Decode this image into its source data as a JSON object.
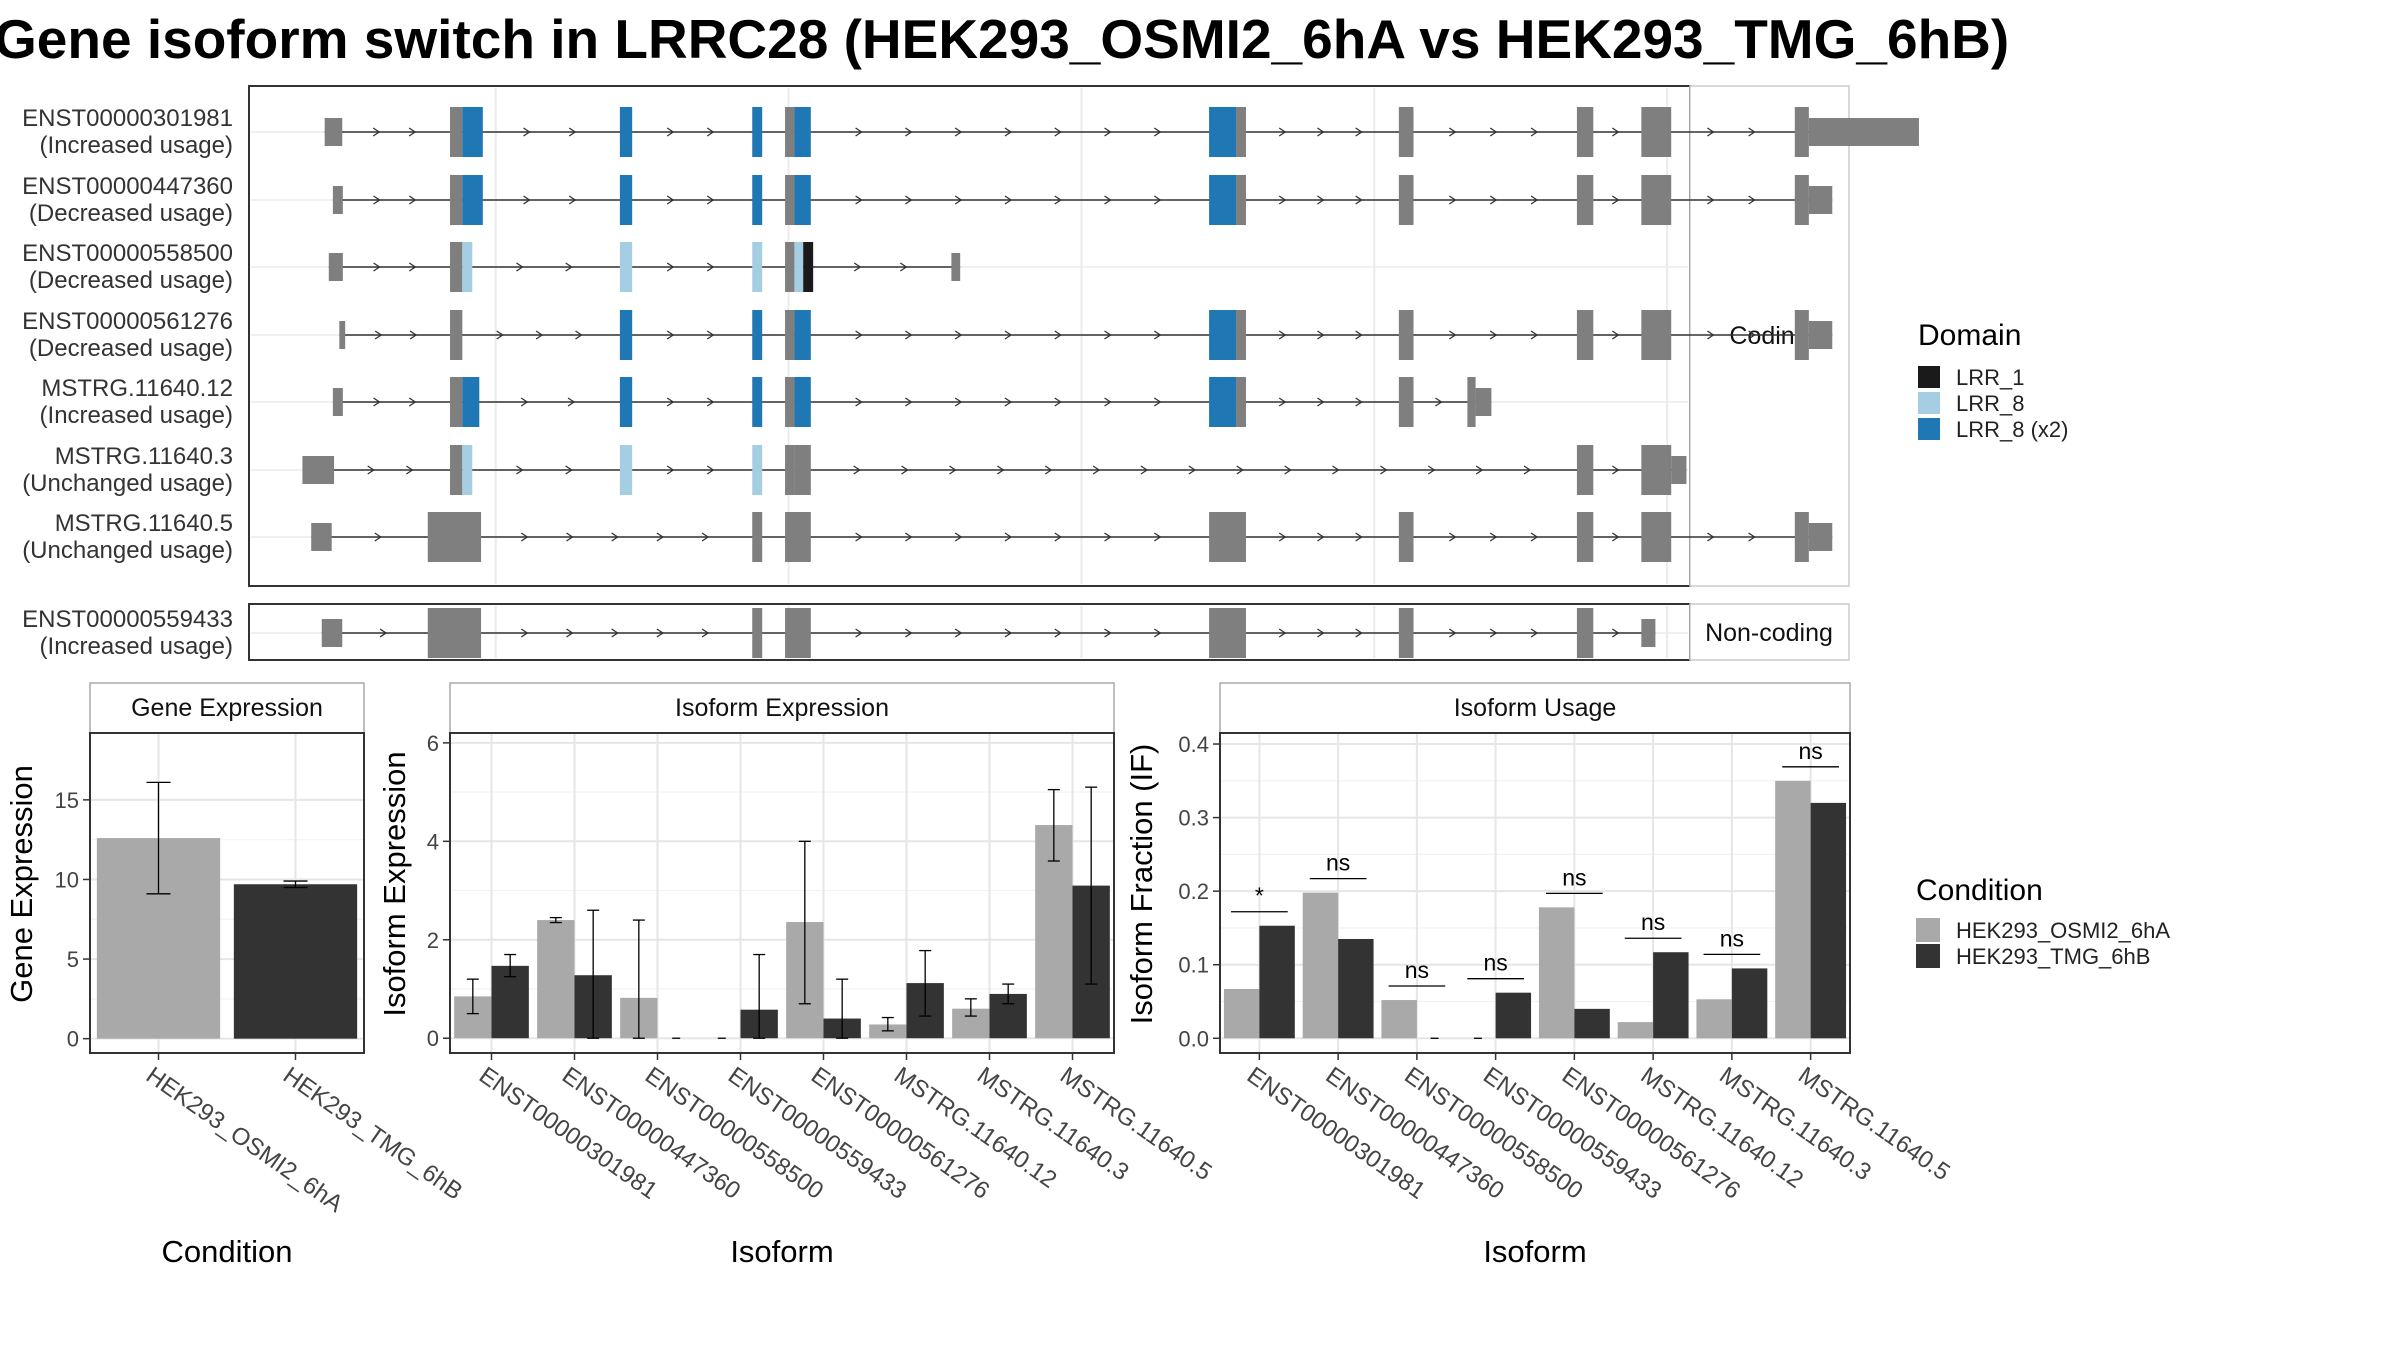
{
  "title": "Gene isoform switch in LRRC28 (HEK293_OSMI2_6hA vs HEK293_TMG_6hB)",
  "structure": {
    "coding_label": "Coding",
    "noncoding_label": "Non-coding",
    "transcripts": [
      {
        "id": "ENST00000301981",
        "usage": "(Increased usage)",
        "group": "coding"
      },
      {
        "id": "ENST00000447360",
        "usage": "(Decreased usage)",
        "group": "coding"
      },
      {
        "id": "ENST00000558500",
        "usage": "(Decreased usage)",
        "group": "coding"
      },
      {
        "id": "ENST00000561276",
        "usage": "(Decreased usage)",
        "group": "coding"
      },
      {
        "id": "MSTRG.11640.12",
        "usage": "(Increased usage)",
        "group": "coding"
      },
      {
        "id": "MSTRG.11640.3",
        "usage": "(Unchanged usage)",
        "group": "coding"
      },
      {
        "id": "MSTRG.11640.5",
        "usage": "(Unchanged usage)",
        "group": "coding"
      },
      {
        "id": "ENST00000559433",
        "usage": "(Increased usage)",
        "group": "noncoding"
      }
    ],
    "exon_sets": {
      "ENST00000301981": [
        [
          0.8,
          3.8,
          "n"
        ],
        [
          22.2,
          24.3,
          "n"
        ],
        [
          24.3,
          27.8,
          "d"
        ],
        [
          51.2,
          53.3,
          "d"
        ],
        [
          73.8,
          75.5,
          "d"
        ],
        [
          79.4,
          81.0,
          "n"
        ],
        [
          81.0,
          83.8,
          "d"
        ],
        [
          151.8,
          156.4,
          "d"
        ],
        [
          156.4,
          158.1,
          "n"
        ],
        [
          184.2,
          186.7,
          "n"
        ],
        [
          214.6,
          217.4,
          "n"
        ],
        [
          225.6,
          230.7,
          "n"
        ],
        [
          251.8,
          254.2,
          "n"
        ],
        [
          254.2,
          273.0,
          "n"
        ]
      ],
      "ENST00000447360": [
        [
          2.2,
          3.9,
          "n"
        ],
        [
          22.2,
          24.3,
          "n"
        ],
        [
          24.3,
          27.8,
          "d"
        ],
        [
          51.2,
          53.3,
          "d"
        ],
        [
          73.8,
          75.5,
          "d"
        ],
        [
          79.4,
          81.0,
          "n"
        ],
        [
          81.0,
          83.8,
          "d"
        ],
        [
          151.8,
          156.4,
          "d"
        ],
        [
          156.4,
          158.1,
          "n"
        ],
        [
          184.2,
          186.7,
          "n"
        ],
        [
          214.6,
          217.4,
          "n"
        ],
        [
          225.6,
          230.7,
          "n"
        ],
        [
          251.8,
          254.2,
          "n"
        ],
        [
          254.2,
          258.2,
          "n"
        ]
      ],
      "ENST00000558500": [
        [
          1.5,
          3.9,
          "n"
        ],
        [
          22.2,
          24.3,
          "n"
        ],
        [
          24.3,
          26.0,
          "l"
        ],
        [
          51.2,
          53.3,
          "l"
        ],
        [
          73.8,
          75.5,
          "l"
        ],
        [
          79.4,
          81.0,
          "n"
        ],
        [
          81.0,
          82.5,
          "l"
        ],
        [
          82.5,
          84.2,
          "b"
        ],
        [
          107.8,
          109.3,
          "n"
        ]
      ],
      "ENST00000561276": [
        [
          3.3,
          4.3,
          "n"
        ],
        [
          22.2,
          24.3,
          "n"
        ],
        [
          51.2,
          53.3,
          "d"
        ],
        [
          73.8,
          75.5,
          "d"
        ],
        [
          79.4,
          81.0,
          "n"
        ],
        [
          81.0,
          83.8,
          "d"
        ],
        [
          151.8,
          156.4,
          "d"
        ],
        [
          156.4,
          158.1,
          "n"
        ],
        [
          184.2,
          186.7,
          "n"
        ],
        [
          214.6,
          217.4,
          "n"
        ],
        [
          225.6,
          230.7,
          "n"
        ],
        [
          251.8,
          254.2,
          "n"
        ],
        [
          254.2,
          258.2,
          "n"
        ]
      ],
      "MSTRG.11640.12": [
        [
          2.2,
          3.9,
          "n"
        ],
        [
          22.2,
          24.3,
          "n"
        ],
        [
          24.3,
          27.2,
          "d"
        ],
        [
          51.2,
          53.3,
          "d"
        ],
        [
          73.8,
          75.5,
          "d"
        ],
        [
          79.4,
          81.0,
          "n"
        ],
        [
          81.0,
          83.8,
          "d"
        ],
        [
          151.8,
          156.4,
          "d"
        ],
        [
          156.4,
          158.1,
          "n"
        ],
        [
          184.2,
          186.7,
          "n"
        ],
        [
          195.9,
          197.3,
          "n"
        ],
        [
          197.3,
          200.0,
          "n"
        ]
      ],
      "MSTRG.11640.3": [
        [
          -3.0,
          2.4,
          "n"
        ],
        [
          22.2,
          24.3,
          "n"
        ],
        [
          24.3,
          26.0,
          "l"
        ],
        [
          51.2,
          53.3,
          "l"
        ],
        [
          73.8,
          75.5,
          "l"
        ],
        [
          79.4,
          81.0,
          "n"
        ],
        [
          81.0,
          83.8,
          "n"
        ],
        [
          214.6,
          217.4,
          "n"
        ],
        [
          225.6,
          230.7,
          "n"
        ],
        [
          230.7,
          233.3,
          "n"
        ]
      ],
      "MSTRG.11640.5": [
        [
          -1.5,
          2.0,
          "n"
        ],
        [
          18.4,
          27.5,
          "n"
        ],
        [
          73.8,
          75.5,
          "n"
        ],
        [
          79.4,
          83.8,
          "n"
        ],
        [
          151.8,
          154.0,
          "n"
        ],
        [
          154.0,
          158.1,
          "n"
        ],
        [
          184.2,
          186.7,
          "n"
        ],
        [
          214.6,
          217.4,
          "n"
        ],
        [
          225.6,
          230.7,
          "n"
        ],
        [
          251.8,
          254.2,
          "n"
        ],
        [
          254.2,
          258.2,
          "n"
        ]
      ],
      "ENST00000559433": [
        [
          0.3,
          3.8,
          "n"
        ],
        [
          18.4,
          27.5,
          "n"
        ],
        [
          73.8,
          75.5,
          "n"
        ],
        [
          79.4,
          83.8,
          "n"
        ],
        [
          151.8,
          154.0,
          "n"
        ],
        [
          154.0,
          158.1,
          "n"
        ],
        [
          184.2,
          186.7,
          "n"
        ],
        [
          214.6,
          217.4,
          "n"
        ],
        [
          225.6,
          228.0,
          "n"
        ]
      ]
    }
  },
  "domain_legend": {
    "title": "Domain",
    "items": [
      {
        "label": "LRR_1",
        "color": "#1a1a1a"
      },
      {
        "label": "LRR_8",
        "color": "#a6cee3"
      },
      {
        "label": "LRR_8 (x2)",
        "color": "#1f78b4"
      }
    ]
  },
  "condition_legend": {
    "title": "Condition",
    "items": [
      {
        "label": "HEK293_OSMI2_6hA",
        "color": "#a9a9a9"
      },
      {
        "label": "HEK293_TMG_6hB",
        "color": "#333333"
      }
    ]
  },
  "chart_data": [
    {
      "type": "bar",
      "title": "Gene Expression",
      "xlabel": "Condition",
      "ylabel": "Gene Expression",
      "ylim": [
        -0.9,
        19.2
      ],
      "yticks": [
        0,
        5,
        10,
        15
      ],
      "categories": [
        "HEK293_OSMI2_6hA",
        "HEK293_TMG_6hB"
      ],
      "values": [
        12.6,
        9.7
      ],
      "errors": [
        [
          9.1,
          16.1
        ],
        [
          9.5,
          9.9
        ]
      ]
    },
    {
      "type": "bar",
      "title": "Isoform Expression",
      "xlabel": "Isoform",
      "ylabel": "Isoform Expression",
      "ylim": [
        -0.3,
        6.2
      ],
      "yticks": [
        0,
        2,
        4,
        6
      ],
      "categories": [
        "ENST00000301981",
        "ENST00000447360",
        "ENST00000558500",
        "ENST00000559433",
        "ENST00000561276",
        "MSTRG.11640.12",
        "MSTRG.11640.3",
        "MSTRG.11640.5"
      ],
      "series": [
        {
          "name": "HEK293_OSMI2_6hA",
          "values": [
            0.85,
            2.4,
            0.82,
            0,
            2.36,
            0.28,
            0.6,
            4.33
          ],
          "errors": [
            [
              0.5,
              1.2
            ],
            [
              2.35,
              2.45
            ],
            [
              0,
              2.4
            ],
            [
              0,
              0
            ],
            [
              0.7,
              4.0
            ],
            [
              0.15,
              0.42
            ],
            [
              0.45,
              0.8
            ],
            [
              3.6,
              5.05
            ]
          ]
        },
        {
          "name": "HEK293_TMG_6hB",
          "values": [
            1.47,
            1.28,
            0,
            0.58,
            0.4,
            1.12,
            0.9,
            3.1
          ],
          "errors": [
            [
              1.25,
              1.7
            ],
            [
              0,
              2.6
            ],
            [
              0,
              0
            ],
            [
              0,
              1.7
            ],
            [
              0,
              1.2
            ],
            [
              0.45,
              1.78
            ],
            [
              0.7,
              1.1
            ],
            [
              1.1,
              5.1
            ]
          ]
        }
      ]
    },
    {
      "type": "bar",
      "title": "Isoform Usage",
      "xlabel": "Isoform",
      "ylabel": "Isoform Fraction (IF)",
      "ylim": [
        -0.02,
        0.415
      ],
      "yticks": [
        0.0,
        0.1,
        0.2,
        0.3,
        0.4
      ],
      "ytick_labels": [
        "0.0",
        "0.1",
        "0.2",
        "0.3",
        "0.4"
      ],
      "categories": [
        "ENST00000301981",
        "ENST00000447360",
        "ENST00000558500",
        "ENST00000559433",
        "ENST00000561276",
        "MSTRG.11640.12",
        "MSTRG.11640.3",
        "MSTRG.11640.5"
      ],
      "series": [
        {
          "name": "HEK293_OSMI2_6hA",
          "values": [
            0.067,
            0.198,
            0.052,
            0,
            0.178,
            0.022,
            0.053,
            0.35
          ]
        },
        {
          "name": "HEK293_TMG_6hB",
          "values": [
            0.153,
            0.135,
            0,
            0.062,
            0.04,
            0.117,
            0.095,
            0.32
          ]
        }
      ],
      "significance": [
        "*",
        "ns",
        "ns",
        "ns",
        "ns",
        "ns",
        "ns",
        "ns"
      ]
    }
  ]
}
